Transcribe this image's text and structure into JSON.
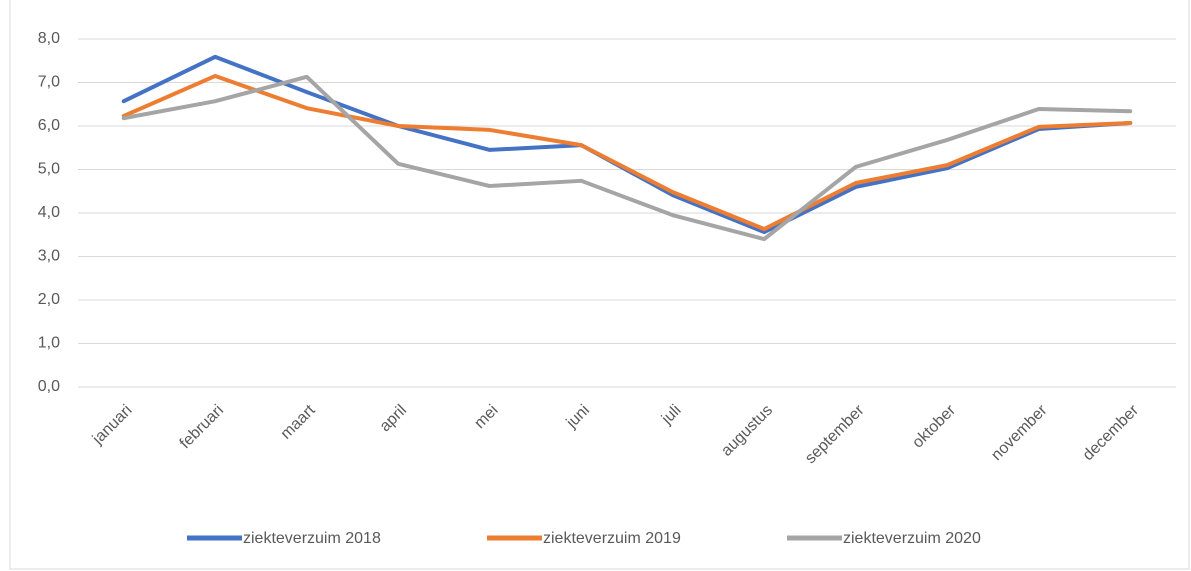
{
  "chart_data": {
    "type": "line",
    "categories": [
      "januari",
      "februari",
      "maart",
      "april",
      "mei",
      "juni",
      "juli",
      "augustus",
      "september",
      "oktober",
      "november",
      "december"
    ],
    "series": [
      {
        "name": "ziekteverzuim 2018",
        "color": "#4472c4",
        "values": [
          6.57,
          7.59,
          6.78,
          6.0,
          5.45,
          5.56,
          4.41,
          3.56,
          4.6,
          5.03,
          5.93,
          6.07
        ]
      },
      {
        "name": "ziekteverzuim 2019",
        "color": "#ed7d31",
        "values": [
          6.23,
          7.15,
          6.41,
          6.0,
          5.91,
          5.56,
          4.48,
          3.63,
          4.69,
          5.1,
          5.98,
          6.07
        ]
      },
      {
        "name": "ziekteverzuim 2020",
        "color": "#a5a5a5",
        "values": [
          6.18,
          6.57,
          7.13,
          5.13,
          4.62,
          4.74,
          3.95,
          3.4,
          5.06,
          5.68,
          6.39,
          6.34
        ]
      }
    ],
    "ylim": [
      0,
      8
    ],
    "yticks": [
      {
        "value": 0,
        "label": "0,0"
      },
      {
        "value": 1,
        "label": "1,0"
      },
      {
        "value": 2,
        "label": "2,0"
      },
      {
        "value": 3,
        "label": "3,0"
      },
      {
        "value": 4,
        "label": "4,0"
      },
      {
        "value": 5,
        "label": "5,0"
      },
      {
        "value": 6,
        "label": "6,0"
      },
      {
        "value": 7,
        "label": "7,0"
      },
      {
        "value": 8,
        "label": "8,0"
      }
    ],
    "grid": true,
    "legend": "bottom"
  }
}
